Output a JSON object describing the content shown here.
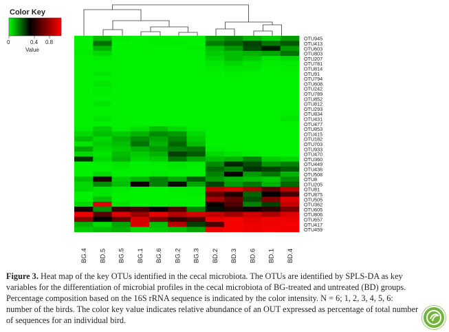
{
  "color_key": {
    "title": "Color Key",
    "ticks": [
      "0",
      "0.4",
      "0.8"
    ],
    "value_label": "Value"
  },
  "colors": {
    "low": "#00ff00",
    "mid": "#000000",
    "high": "#ff0000",
    "text": "#231f20"
  },
  "caption": {
    "figure_number": "Figure 3.",
    "text": "Heat map of the key OTUs identified in the cecal microbiota. The OTUs are identified by SPLS-DA as key variables for the differentiation of microbial profiles in the cecal microbiota of BG-treated and untreated (BD) groups. Percentage composition based on the 16S rRNA sequence is indicated by the color intensity. N = 6; 1, 2, 3, 4, 5, 6: number of the birds. The color key value indicates relative abundance of an OUT expressed as percentage of total number of sequences for an individual bird."
  },
  "chart_data": {
    "type": "heatmap",
    "columns": [
      "BG.4",
      "BD.5",
      "BG.5",
      "BG.1",
      "BG.6",
      "BG.2",
      "BG.3",
      "BD.2",
      "BD.3",
      "BD.6",
      "BD.1",
      "BD.4"
    ],
    "rows": [
      "OTU945",
      "OTU413",
      "OTU603",
      "OTU803",
      "OTU207",
      "OTU781",
      "OTU814",
      "OTU91",
      "OTU794",
      "OTU608",
      "OTU242",
      "OTU789",
      "OTU852",
      "OTU812",
      "OTU293",
      "OTU834",
      "OTU431",
      "OTU477",
      "OTU853",
      "OTU415",
      "OTU182",
      "OTU703",
      "OTU933",
      "OTU470",
      "OTU360",
      "OTU449",
      "OTU436",
      "OTU508",
      "OTU8",
      "OTU205",
      "OTU81",
      "OTU875",
      "OTU505",
      "OTU362",
      "OTU605",
      "OTU806",
      "OTU657",
      "OTU417",
      "OTU459"
    ],
    "values": [
      [
        0.02,
        0.1,
        0.03,
        0.02,
        0.03,
        0.02,
        0.02,
        0.14,
        0.18,
        0.12,
        0.08,
        0.16
      ],
      [
        0.02,
        0.22,
        0.02,
        0.02,
        0.03,
        0.03,
        0.02,
        0.2,
        0.24,
        0.3,
        0.22,
        0.26
      ],
      [
        0.02,
        0.12,
        0.02,
        0.02,
        0.02,
        0.02,
        0.03,
        0.1,
        0.16,
        0.28,
        0.36,
        0.16
      ],
      [
        0.03,
        0.06,
        0.02,
        0.02,
        0.02,
        0.02,
        0.02,
        0.08,
        0.1,
        0.12,
        0.14,
        0.22
      ],
      [
        0.02,
        0.03,
        0.02,
        0.02,
        0.02,
        0.02,
        0.02,
        0.06,
        0.1,
        0.08,
        0.04,
        0.06
      ],
      [
        0.02,
        0.02,
        0.02,
        0.02,
        0.02,
        0.02,
        0.02,
        0.04,
        0.06,
        0.04,
        0.03,
        0.03
      ],
      [
        0.02,
        0.02,
        0.02,
        0.02,
        0.02,
        0.02,
        0.02,
        0.03,
        0.04,
        0.04,
        0.02,
        0.03
      ],
      [
        0.02,
        0.04,
        0.02,
        0.02,
        0.02,
        0.02,
        0.02,
        0.02,
        0.03,
        0.02,
        0.02,
        0.02
      ],
      [
        0.02,
        0.02,
        0.02,
        0.02,
        0.02,
        0.02,
        0.02,
        0.02,
        0.02,
        0.02,
        0.02,
        0.02
      ],
      [
        0.02,
        0.04,
        0.02,
        0.02,
        0.02,
        0.02,
        0.02,
        0.02,
        0.02,
        0.02,
        0.02,
        0.02
      ],
      [
        0.02,
        0.03,
        0.02,
        0.02,
        0.02,
        0.02,
        0.02,
        0.02,
        0.02,
        0.02,
        0.02,
        0.02
      ],
      [
        0.02,
        0.03,
        0.02,
        0.02,
        0.02,
        0.02,
        0.02,
        0.02,
        0.02,
        0.02,
        0.02,
        0.02
      ],
      [
        0.02,
        0.02,
        0.02,
        0.02,
        0.02,
        0.02,
        0.02,
        0.02,
        0.02,
        0.02,
        0.02,
        0.02
      ],
      [
        0.02,
        0.04,
        0.02,
        0.02,
        0.02,
        0.02,
        0.02,
        0.02,
        0.02,
        0.02,
        0.02,
        0.02
      ],
      [
        0.02,
        0.02,
        0.02,
        0.02,
        0.02,
        0.02,
        0.02,
        0.02,
        0.02,
        0.02,
        0.02,
        0.02
      ],
      [
        0.02,
        0.02,
        0.02,
        0.02,
        0.02,
        0.02,
        0.02,
        0.02,
        0.02,
        0.02,
        0.02,
        0.03
      ],
      [
        0.02,
        0.04,
        0.02,
        0.02,
        0.02,
        0.02,
        0.02,
        0.02,
        0.02,
        0.02,
        0.02,
        0.04
      ],
      [
        0.02,
        0.02,
        0.02,
        0.02,
        0.02,
        0.02,
        0.02,
        0.02,
        0.02,
        0.02,
        0.02,
        0.02
      ],
      [
        0.03,
        0.08,
        0.03,
        0.05,
        0.1,
        0.06,
        0.03,
        0.02,
        0.02,
        0.02,
        0.02,
        0.02
      ],
      [
        0.06,
        0.1,
        0.08,
        0.12,
        0.18,
        0.16,
        0.06,
        0.02,
        0.02,
        0.02,
        0.02,
        0.02
      ],
      [
        0.1,
        0.06,
        0.12,
        0.18,
        0.14,
        0.2,
        0.08,
        0.02,
        0.02,
        0.02,
        0.02,
        0.02
      ],
      [
        0.04,
        0.08,
        0.1,
        0.22,
        0.12,
        0.24,
        0.1,
        0.02,
        0.02,
        0.02,
        0.02,
        0.02
      ],
      [
        0.14,
        0.06,
        0.08,
        0.12,
        0.16,
        0.2,
        0.22,
        0.03,
        0.02,
        0.02,
        0.02,
        0.02
      ],
      [
        0.06,
        0.04,
        0.1,
        0.08,
        0.12,
        0.3,
        0.26,
        0.06,
        0.04,
        0.03,
        0.02,
        0.02
      ],
      [
        0.32,
        0.06,
        0.12,
        0.06,
        0.08,
        0.22,
        0.14,
        0.1,
        0.12,
        0.2,
        0.08,
        0.06
      ],
      [
        0.02,
        0.03,
        0.04,
        0.02,
        0.03,
        0.04,
        0.03,
        0.18,
        0.34,
        0.28,
        0.16,
        0.2
      ],
      [
        0.02,
        0.02,
        0.03,
        0.02,
        0.02,
        0.03,
        0.02,
        0.24,
        0.2,
        0.32,
        0.3,
        0.26
      ],
      [
        0.02,
        0.06,
        0.02,
        0.02,
        0.03,
        0.02,
        0.02,
        0.2,
        0.42,
        0.16,
        0.22,
        0.12
      ],
      [
        0.1,
        0.46,
        0.08,
        0.12,
        0.2,
        0.14,
        0.26,
        0.16,
        0.12,
        0.1,
        0.08,
        0.18
      ],
      [
        0.06,
        0.18,
        0.1,
        0.42,
        0.2,
        0.38,
        0.14,
        0.3,
        0.16,
        0.22,
        0.12,
        0.24
      ],
      [
        0.06,
        0.04,
        0.03,
        0.02,
        0.02,
        0.03,
        0.03,
        0.86,
        0.9,
        0.8,
        0.62,
        0.82
      ],
      [
        0.02,
        0.04,
        0.02,
        0.02,
        0.02,
        0.02,
        0.03,
        0.62,
        0.48,
        0.24,
        0.4,
        0.56
      ],
      [
        0.02,
        0.1,
        0.02,
        0.02,
        0.02,
        0.02,
        0.02,
        0.78,
        0.64,
        0.28,
        0.7,
        0.92
      ],
      [
        0.06,
        0.92,
        0.04,
        0.02,
        0.02,
        0.03,
        0.02,
        0.42,
        0.58,
        0.2,
        0.3,
        0.86
      ],
      [
        0.46,
        0.18,
        0.52,
        0.56,
        0.42,
        0.58,
        0.2,
        0.38,
        0.48,
        0.44,
        0.5,
        0.66
      ],
      [
        0.96,
        0.6,
        0.92,
        0.76,
        0.94,
        0.82,
        0.9,
        0.86,
        0.78,
        0.88,
        0.8,
        0.92
      ],
      [
        0.72,
        0.4,
        0.62,
        0.9,
        0.7,
        0.52,
        0.58,
        0.96,
        0.98,
        0.94,
        0.97,
        0.96
      ],
      [
        0.12,
        0.06,
        0.14,
        0.9,
        0.1,
        0.82,
        0.3,
        0.58,
        0.98,
        0.96,
        0.96,
        0.98
      ],
      [
        0.08,
        0.1,
        0.12,
        0.06,
        0.08,
        0.1,
        0.14,
        0.96,
        0.98,
        0.96,
        0.98,
        0.97
      ]
    ]
  }
}
